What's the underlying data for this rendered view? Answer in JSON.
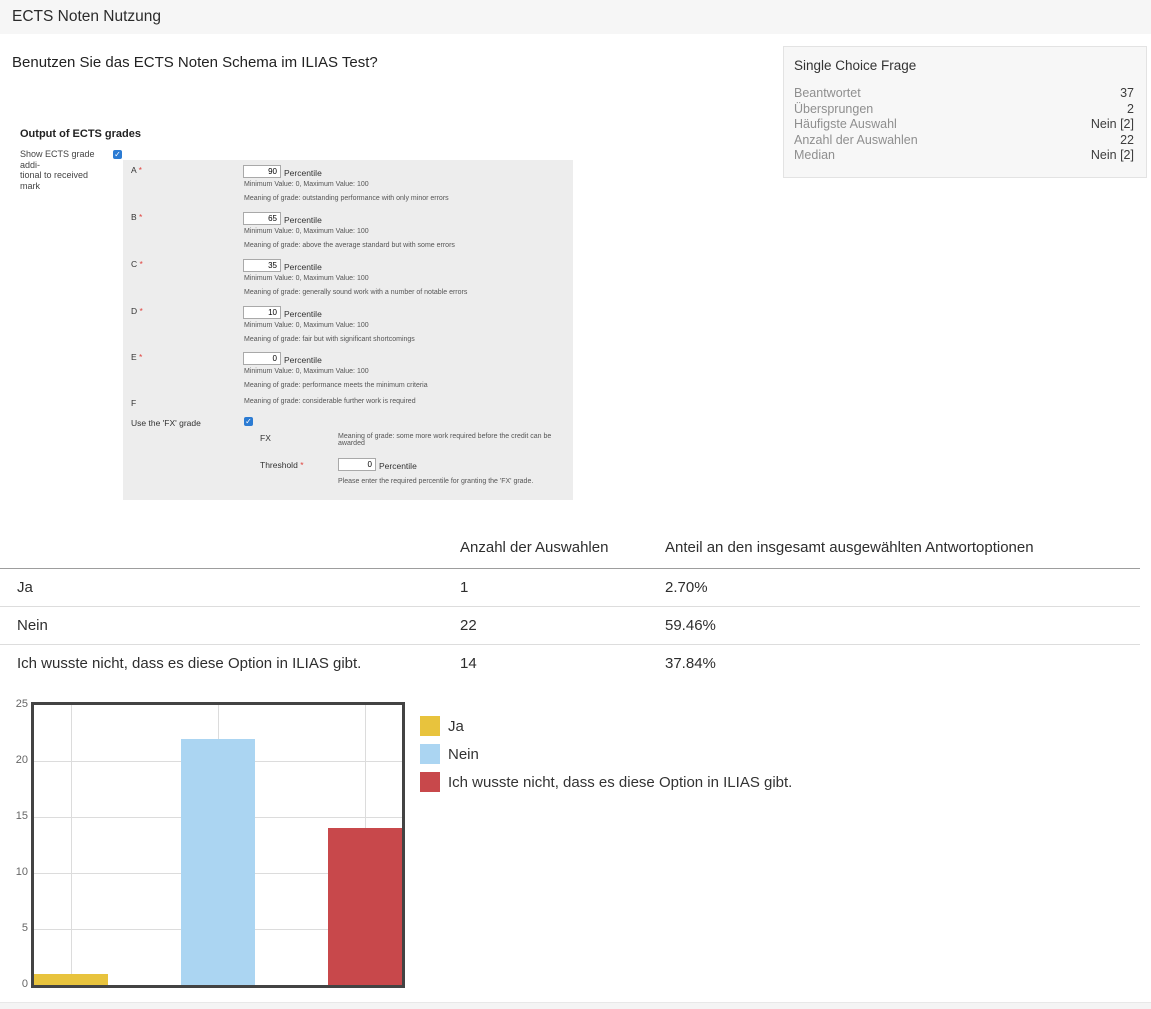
{
  "header": {
    "title": "ECTS Noten Nutzung"
  },
  "question": {
    "text": "Benutzen Sie das ECTS Noten Schema im ILIAS Test?"
  },
  "stats_panel": {
    "title": "Single Choice Frage",
    "rows": [
      {
        "label": "Beantwortet",
        "value": "37"
      },
      {
        "label": "Übersprungen",
        "value": "2"
      },
      {
        "label": "Häufigste Auswahl",
        "value": "Nein [2]"
      },
      {
        "label": "Anzahl der Auswahlen",
        "value": "22"
      },
      {
        "label": "Median",
        "value": "Nein [2]"
      }
    ]
  },
  "ects_form": {
    "heading": "Output of ECTS grades",
    "show_label": "Show ECTS grade addi-\ntional to received\nmark",
    "required_marker": "*",
    "unit": "Percentile",
    "range_text": "Minimum Value: 0, Maximum Value: 100",
    "grades": [
      {
        "label": "A",
        "value": "90",
        "meaning": "Meaning of grade: outstanding performance with only minor errors"
      },
      {
        "label": "B",
        "value": "65",
        "meaning": "Meaning of grade: above the average standard but with some errors"
      },
      {
        "label": "C",
        "value": "35",
        "meaning": "Meaning of grade: generally sound work with a number of notable errors"
      },
      {
        "label": "D",
        "value": "10",
        "meaning": "Meaning of grade: fair but with significant shortcomings"
      },
      {
        "label": "E",
        "value": "0",
        "meaning": "Meaning of grade: performance meets the minimum criteria"
      },
      {
        "label": "F",
        "meaning": "Meaning of grade: considerable further work is required"
      }
    ],
    "fx": {
      "use_label": "Use the 'FX' grade",
      "fx_label": "FX",
      "fx_meaning": "Meaning of grade: some more work required before the credit can be awarded",
      "threshold_label": "Threshold",
      "threshold_value": "0",
      "threshold_help": "Please enter the required percentile for granting the 'FX' grade."
    }
  },
  "table": {
    "columns": [
      "Anzahl der Auswahlen",
      "Anteil an den insgesamt ausgewählten Antwortoptionen"
    ],
    "rows": [
      {
        "option": "Ja",
        "count": "1",
        "share": "2.70%"
      },
      {
        "option": "Nein",
        "count": "22",
        "share": "59.46%"
      },
      {
        "option": "Ich wusste nicht, dass es diese Option in ILIAS gibt.",
        "count": "14",
        "share": "37.84%"
      }
    ]
  },
  "chart_data": {
    "type": "bar",
    "categories": [
      "Ja",
      "Nein",
      "Ich wusste nicht, dass es diese Option in ILIAS gibt."
    ],
    "values": [
      1,
      22,
      14
    ],
    "colors": [
      "#e8c33d",
      "#abd5f2",
      "#c8484b"
    ],
    "title": "",
    "xlabel": "",
    "ylabel": "",
    "ylim": [
      0,
      25
    ],
    "yticks": [
      0,
      5,
      10,
      15,
      20,
      25
    ],
    "grid": true,
    "legend_position": "right"
  }
}
